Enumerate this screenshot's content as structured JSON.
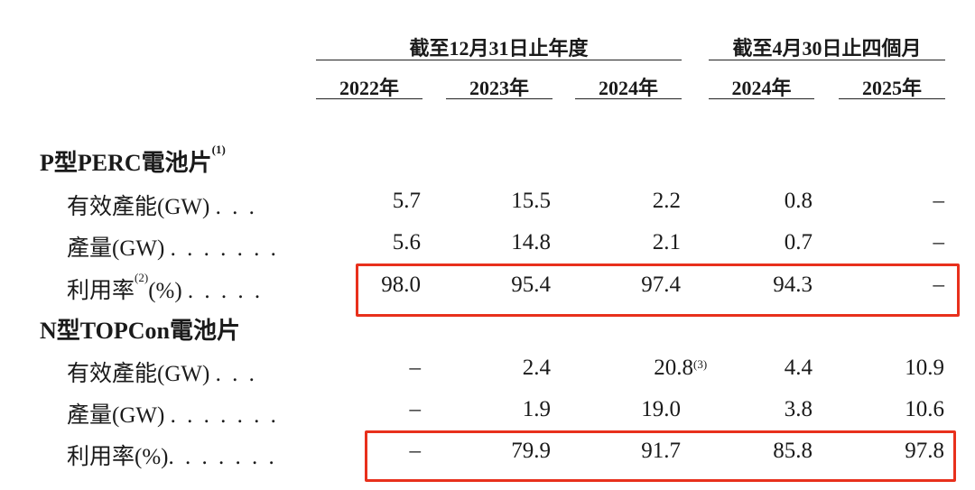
{
  "header": {
    "group1": "截至12月31日止年度",
    "group2": "截至4月30日止四個月",
    "columns": [
      "2022年",
      "2023年",
      "2024年",
      "2024年",
      "2025年"
    ]
  },
  "sections": [
    {
      "title": "P型PERC電池片",
      "title_note": "(1)",
      "rows": [
        {
          "label": "有效產能(GW)",
          "note": "",
          "suffix": "",
          "dots": ". . .",
          "values": [
            "5.7",
            "15.5",
            "2.2",
            "0.8",
            "–"
          ],
          "value_notes": [
            "",
            "",
            "",
            "",
            ""
          ]
        },
        {
          "label": "產量(GW)",
          "note": "",
          "suffix": "",
          "dots": ". . . . . . .",
          "values": [
            "5.6",
            "14.8",
            "2.1",
            "0.7",
            "–"
          ],
          "value_notes": [
            "",
            "",
            "",
            "",
            ""
          ]
        },
        {
          "label": "利用率",
          "note": "(2)",
          "suffix": "(%)",
          "dots": ". . . . .",
          "values": [
            "98.0",
            "95.4",
            "97.4",
            "94.3",
            "–"
          ],
          "value_notes": [
            "",
            "",
            "",
            "",
            ""
          ]
        }
      ]
    },
    {
      "title": "N型TOPCon電池片",
      "title_note": "",
      "rows": [
        {
          "label": "有效產能(GW)",
          "note": "",
          "suffix": "",
          "dots": ". . .",
          "values": [
            "–",
            "2.4",
            "20.8",
            "4.4",
            "10.9"
          ],
          "value_notes": [
            "",
            "",
            "(3)",
            "",
            ""
          ]
        },
        {
          "label": "產量(GW)",
          "note": "",
          "suffix": "",
          "dots": ". . . . . . .",
          "values": [
            "–",
            "1.9",
            "19.0",
            "3.8",
            "10.6"
          ],
          "value_notes": [
            "",
            "",
            "",
            "",
            ""
          ]
        },
        {
          "label": "利用率(%)",
          "note": "",
          "suffix": "",
          "dots": ". . . . . . .",
          "values": [
            "–",
            "79.9",
            "91.7",
            "85.8",
            "97.8"
          ],
          "value_notes": [
            "",
            "",
            "",
            "",
            ""
          ]
        }
      ]
    }
  ],
  "highlight_color": "#e8301c"
}
